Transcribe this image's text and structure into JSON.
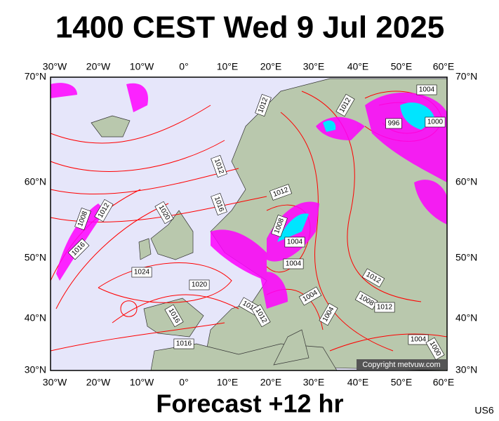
{
  "header": {
    "title": "1400 CEST Wed 9 Jul 2025"
  },
  "map": {
    "lon_labels": [
      "30°W",
      "20°W",
      "10°W",
      "0°",
      "10°E",
      "20°E",
      "30°E",
      "40°E",
      "50°E",
      "60°E"
    ],
    "lat_labels": [
      "70°N",
      "60°N",
      "50°N",
      "40°N",
      "30°N"
    ],
    "isobar_labels": [
      1004,
      1012,
      1012,
      996,
      1000,
      1012,
      1012,
      1016,
      1020,
      1008,
      1012,
      1008,
      1016,
      1004,
      1004,
      1024,
      1020,
      1012,
      1004,
      1016,
      1012,
      1008,
      1012,
      1004,
      1016,
      1016,
      1004,
      1000
    ],
    "copyright": "Copyright metvuw.com"
  },
  "footer": {
    "forecast": "Forecast +12 hr",
    "code": "US6"
  }
}
